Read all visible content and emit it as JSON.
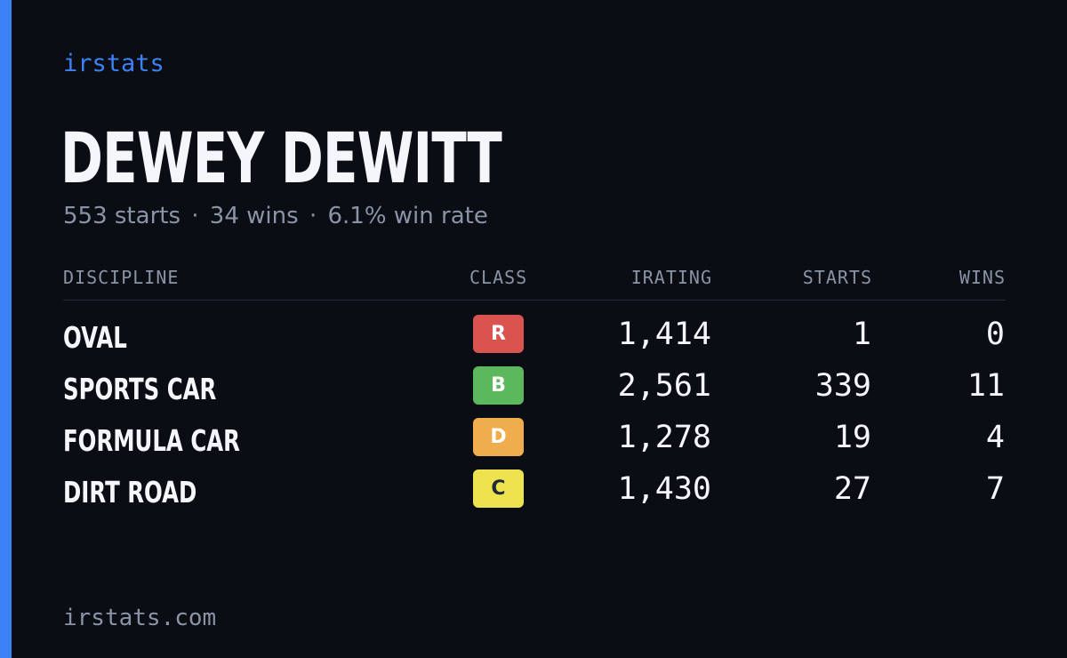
{
  "brand": "irstats",
  "driver": {
    "name": "DEWEY DEWITT",
    "starts_text": "553 starts",
    "wins_text": "34 wins",
    "win_rate_text": "6.1% win rate",
    "separator": "·"
  },
  "table": {
    "headers": {
      "discipline": "DISCIPLINE",
      "class": "CLASS",
      "irating": "IRATING",
      "starts": "STARTS",
      "wins": "WINS"
    },
    "rows": [
      {
        "discipline": "OVAL",
        "class": "R",
        "class_color": "#d9534f",
        "class_text_color": "#ffffff",
        "irating": "1,414",
        "starts": "1",
        "wins": "0"
      },
      {
        "discipline": "SPORTS CAR",
        "class": "B",
        "class_color": "#5cb85c",
        "class_text_color": "#ffffff",
        "irating": "2,561",
        "starts": "339",
        "wins": "11"
      },
      {
        "discipline": "FORMULA CAR",
        "class": "D",
        "class_color": "#f0ad4e",
        "class_text_color": "#ffffff",
        "irating": "1,278",
        "starts": "19",
        "wins": "4"
      },
      {
        "discipline": "DIRT ROAD",
        "class": "C",
        "class_color": "#ede34f",
        "class_text_color": "#1f2937",
        "irating": "1,430",
        "starts": "27",
        "wins": "7"
      }
    ]
  },
  "footer": "irstats.com",
  "colors": {
    "background": "#0a0d14",
    "accent": "#3b82f6",
    "text_primary": "#f4f6fa",
    "text_muted": "#8a94a6"
  }
}
